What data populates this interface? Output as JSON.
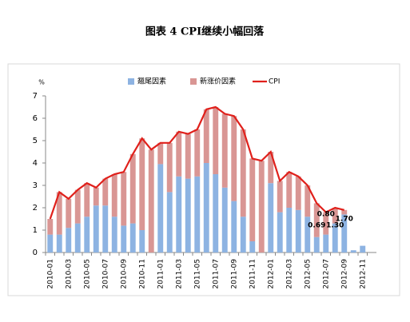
{
  "chart_data": {
    "type": "stacked-bar-line",
    "title": "图表 4 CPI继续小幅回落",
    "y_label": "%",
    "categories": [
      "2010-01",
      null,
      "2010-03",
      null,
      "2010-05",
      null,
      "2010-07",
      null,
      "2010-09",
      null,
      "2010-11",
      null,
      "2011-01",
      null,
      "2011-03",
      null,
      "2011-05",
      null,
      "2011-07",
      null,
      "2011-09",
      null,
      "2011-11",
      null,
      "2012-01",
      null,
      "2012-03",
      null,
      "2012-05",
      null,
      "2012-07",
      null,
      "2012-09",
      null,
      "2012-11",
      null
    ],
    "series": [
      {
        "name": "翘尾因素",
        "kind": "bar",
        "color": "#8db3e2",
        "values": [
          0.8,
          0.8,
          1.1,
          1.3,
          1.6,
          2.1,
          2.1,
          1.6,
          1.2,
          1.3,
          1.0,
          0,
          3.95,
          2.7,
          3.4,
          3.3,
          3.4,
          4.0,
          3.5,
          2.9,
          2.3,
          1.6,
          0.5,
          0,
          3.1,
          1.8,
          2.0,
          1.9,
          1.6,
          0.69,
          0.8,
          1.3,
          1.7,
          0.1,
          0.3,
          null
        ],
        "value_labels": [
          null,
          null,
          null,
          null,
          null,
          null,
          null,
          null,
          null,
          null,
          null,
          null,
          null,
          null,
          null,
          null,
          null,
          null,
          null,
          null,
          null,
          null,
          null,
          null,
          null,
          null,
          null,
          null,
          null,
          "0.69",
          "0.80",
          "1.30",
          "1.70",
          null,
          null,
          null
        ]
      },
      {
        "name": "新涨价因素",
        "kind": "bar",
        "color": "#d99694",
        "values": [
          0.7,
          1.9,
          1.3,
          1.5,
          1.5,
          0.8,
          1.2,
          1.9,
          2.4,
          3.1,
          4.1,
          4.6,
          0.95,
          2.2,
          2.0,
          2.0,
          2.1,
          2.4,
          3.0,
          3.3,
          3.8,
          3.9,
          3.7,
          4.1,
          1.4,
          1.4,
          1.6,
          1.5,
          1.4,
          1.51,
          1.0,
          0.7,
          0.2,
          null,
          null,
          null
        ]
      },
      {
        "name": "CPI",
        "kind": "line",
        "color": "#e0201b",
        "values": [
          1.5,
          2.7,
          2.4,
          2.8,
          3.1,
          2.9,
          3.3,
          3.5,
          3.6,
          4.4,
          5.1,
          4.6,
          4.9,
          4.9,
          5.4,
          5.3,
          5.5,
          6.4,
          6.5,
          6.2,
          6.1,
          5.5,
          4.2,
          4.1,
          4.5,
          3.2,
          3.6,
          3.4,
          3.0,
          2.2,
          1.8,
          2.0,
          1.9,
          null,
          null,
          null
        ]
      }
    ],
    "ylim": [
      0,
      7
    ],
    "yticks": [
      0,
      1,
      2,
      3,
      4,
      5,
      6,
      7
    ],
    "grid": false
  }
}
